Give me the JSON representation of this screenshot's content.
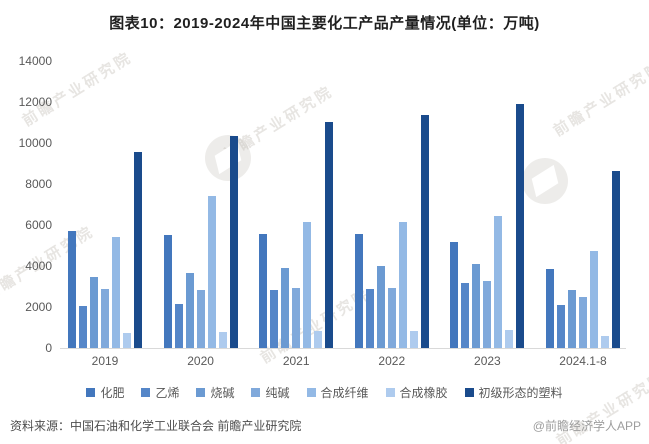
{
  "title": "图表10：2019-2024年中国主要化工产品产量情况(单位：万吨)",
  "watermark": {
    "text": "前瞻产业研究院"
  },
  "footer": {
    "source": "资料来源：中国石油和化学工业联合会 前瞻产业研究院",
    "credit": "@前瞻经济学人APP"
  },
  "chart_data": {
    "type": "bar",
    "title": "图表10：2019-2024年中国主要化工产品产量情况(单位：万吨)",
    "unit": "万吨",
    "categories": [
      "2019",
      "2020",
      "2021",
      "2022",
      "2023",
      "2024.1-8"
    ],
    "series": [
      {
        "id": "fertilizer",
        "name": "化肥",
        "color": "#4377BD",
        "values": [
          5731,
          5496,
          5544,
          5573,
          5150,
          3870
        ]
      },
      {
        "id": "ethylene",
        "name": "乙烯",
        "color": "#5586C8",
        "values": [
          2052,
          2160,
          2826,
          2898,
          3190,
          2100
        ]
      },
      {
        "id": "caustic-soda",
        "name": "烧碱",
        "color": "#6B9AD2",
        "values": [
          3464,
          3674,
          3891,
          3981,
          4101,
          2830
        ]
      },
      {
        "id": "soda-ash",
        "name": "纯碱",
        "color": "#80A9DB",
        "values": [
          2888,
          2812,
          2913,
          2920,
          3270,
          2500
        ]
      },
      {
        "id": "synthetic-fiber",
        "name": "合成纤维",
        "color": "#93B9E5",
        "values": [
          5417,
          7432,
          6152,
          6148,
          6440,
          4740
        ]
      },
      {
        "id": "synthetic-rubber",
        "name": "合成橡胶",
        "color": "#AECBEE",
        "values": [
          739,
          762,
          812,
          823,
          880,
          570
        ]
      },
      {
        "id": "primary-form-plastic",
        "name": "初级形态的塑料",
        "color": "#1A4B8C",
        "values": [
          9574,
          10355,
          11039,
          11367,
          11900,
          8620
        ]
      }
    ],
    "ylim": [
      0,
      14000
    ],
    "yticks": [
      0,
      2000,
      4000,
      6000,
      8000,
      10000,
      12000,
      14000
    ],
    "grid": false,
    "legend_position": "bottom",
    "axis_text_color": "#595959",
    "axis_line_color": "#d9d9d9"
  }
}
